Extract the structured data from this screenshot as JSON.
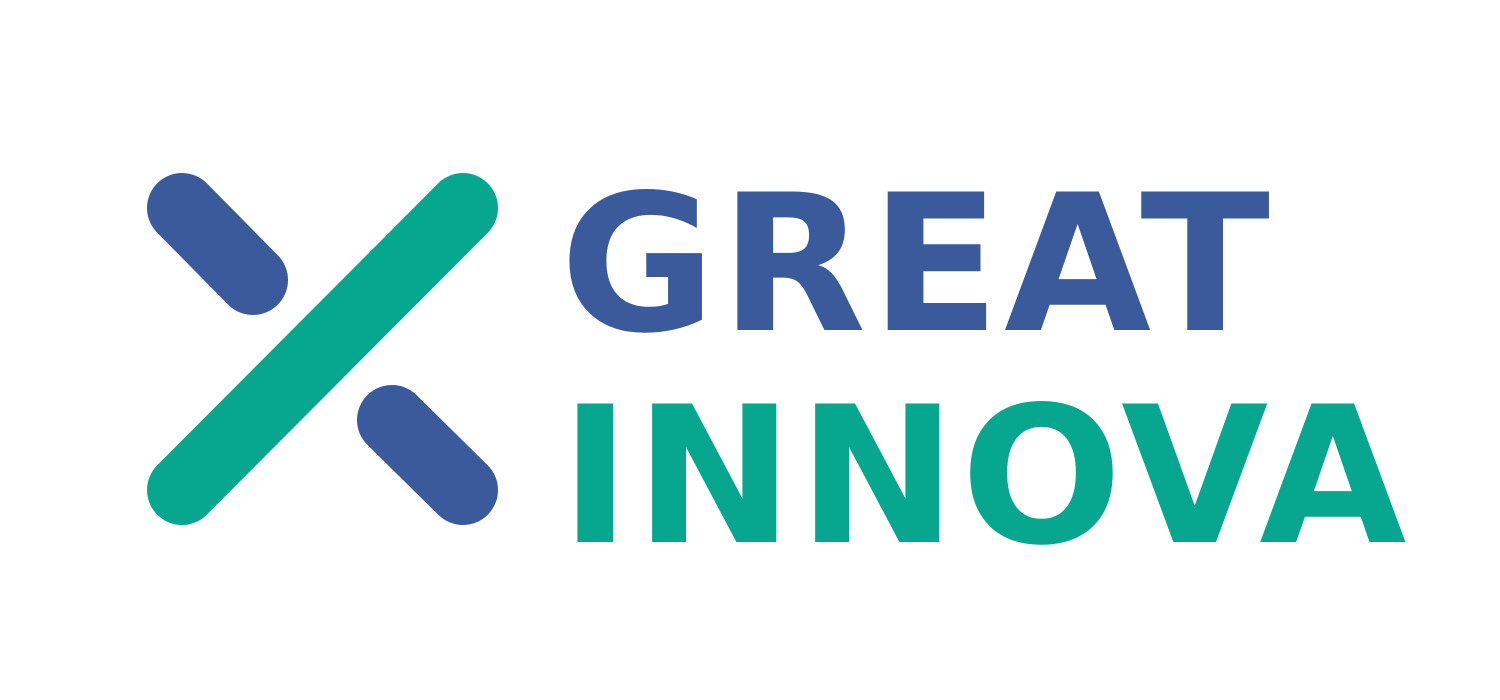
{
  "logo": {
    "line1": "GREAT",
    "line2": "INNOVA",
    "icon": "x-cross-mark-icon"
  },
  "colors": {
    "blue": "#3a5a9b",
    "green": "#06a78e",
    "background": "#ffffff"
  }
}
